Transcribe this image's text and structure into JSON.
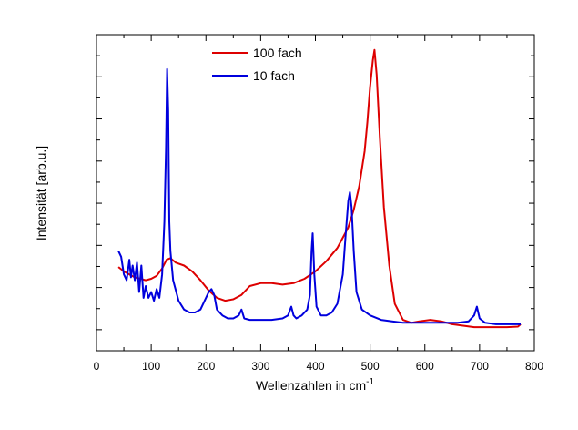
{
  "chart_data": {
    "type": "line",
    "title": "",
    "xlabel": "Wellenzahlen in cm",
    "xlabel_superscript": "-1",
    "ylabel": "Intensität [arb.u.]",
    "xlim": [
      0,
      800
    ],
    "ylim": [
      0,
      1
    ],
    "x_ticks": [
      0,
      100,
      200,
      300,
      400,
      500,
      600,
      700,
      800
    ],
    "y_tick_labels_shown": false,
    "grid": false,
    "legend_position": "top-center",
    "series": [
      {
        "name": "100 fach",
        "color": "#dd0000",
        "x": [
          40,
          50,
          60,
          70,
          80,
          90,
          100,
          110,
          120,
          128,
          135,
          145,
          160,
          175,
          190,
          205,
          220,
          235,
          250,
          265,
          280,
          300,
          320,
          340,
          360,
          380,
          400,
          420,
          440,
          460,
          470,
          480,
          490,
          495,
          500,
          505,
          508,
          512,
          518,
          525,
          535,
          545,
          560,
          575,
          590,
          610,
          630,
          650,
          670,
          690,
          710,
          730,
          750,
          770,
          775
        ],
        "y": [
          0.245,
          0.23,
          0.22,
          0.21,
          0.205,
          0.2,
          0.205,
          0.215,
          0.24,
          0.27,
          0.275,
          0.26,
          0.25,
          0.23,
          0.2,
          0.165,
          0.14,
          0.13,
          0.135,
          0.15,
          0.18,
          0.19,
          0.19,
          0.185,
          0.19,
          0.205,
          0.23,
          0.265,
          0.31,
          0.38,
          0.44,
          0.52,
          0.64,
          0.74,
          0.86,
          0.95,
          0.985,
          0.9,
          0.68,
          0.45,
          0.25,
          0.12,
          0.065,
          0.055,
          0.06,
          0.065,
          0.06,
          0.05,
          0.045,
          0.04,
          0.04,
          0.04,
          0.04,
          0.042,
          0.05
        ]
      },
      {
        "name": "10 fach",
        "color": "#0000dd",
        "x": [
          40,
          45,
          50,
          55,
          60,
          63,
          66,
          70,
          74,
          78,
          82,
          86,
          90,
          95,
          100,
          105,
          110,
          115,
          120,
          124,
          127,
          129,
          131,
          133,
          135,
          140,
          150,
          160,
          170,
          180,
          190,
          200,
          205,
          210,
          215,
          220,
          230,
          240,
          250,
          260,
          265,
          270,
          280,
          300,
          320,
          340,
          350,
          356,
          360,
          365,
          375,
          385,
          390,
          393,
          395,
          398,
          402,
          410,
          420,
          430,
          440,
          450,
          455,
          460,
          463,
          466,
          470,
          475,
          485,
          500,
          520,
          540,
          560,
          580,
          600,
          630,
          660,
          680,
          690,
          695,
          700,
          710,
          730,
          750,
          770,
          775
        ],
        "y": [
          0.3,
          0.28,
          0.22,
          0.2,
          0.27,
          0.21,
          0.25,
          0.2,
          0.26,
          0.16,
          0.25,
          0.14,
          0.18,
          0.14,
          0.16,
          0.13,
          0.17,
          0.14,
          0.22,
          0.4,
          0.65,
          0.92,
          0.78,
          0.4,
          0.3,
          0.2,
          0.13,
          0.1,
          0.09,
          0.09,
          0.1,
          0.14,
          0.16,
          0.17,
          0.15,
          0.1,
          0.08,
          0.07,
          0.07,
          0.08,
          0.1,
          0.07,
          0.065,
          0.065,
          0.065,
          0.07,
          0.08,
          0.11,
          0.08,
          0.07,
          0.08,
          0.1,
          0.15,
          0.3,
          0.36,
          0.22,
          0.11,
          0.08,
          0.08,
          0.09,
          0.12,
          0.22,
          0.35,
          0.47,
          0.5,
          0.45,
          0.3,
          0.16,
          0.1,
          0.08,
          0.065,
          0.06,
          0.055,
          0.055,
          0.055,
          0.055,
          0.055,
          0.06,
          0.08,
          0.11,
          0.07,
          0.055,
          0.05,
          0.05,
          0.05,
          0.05
        ]
      }
    ]
  }
}
